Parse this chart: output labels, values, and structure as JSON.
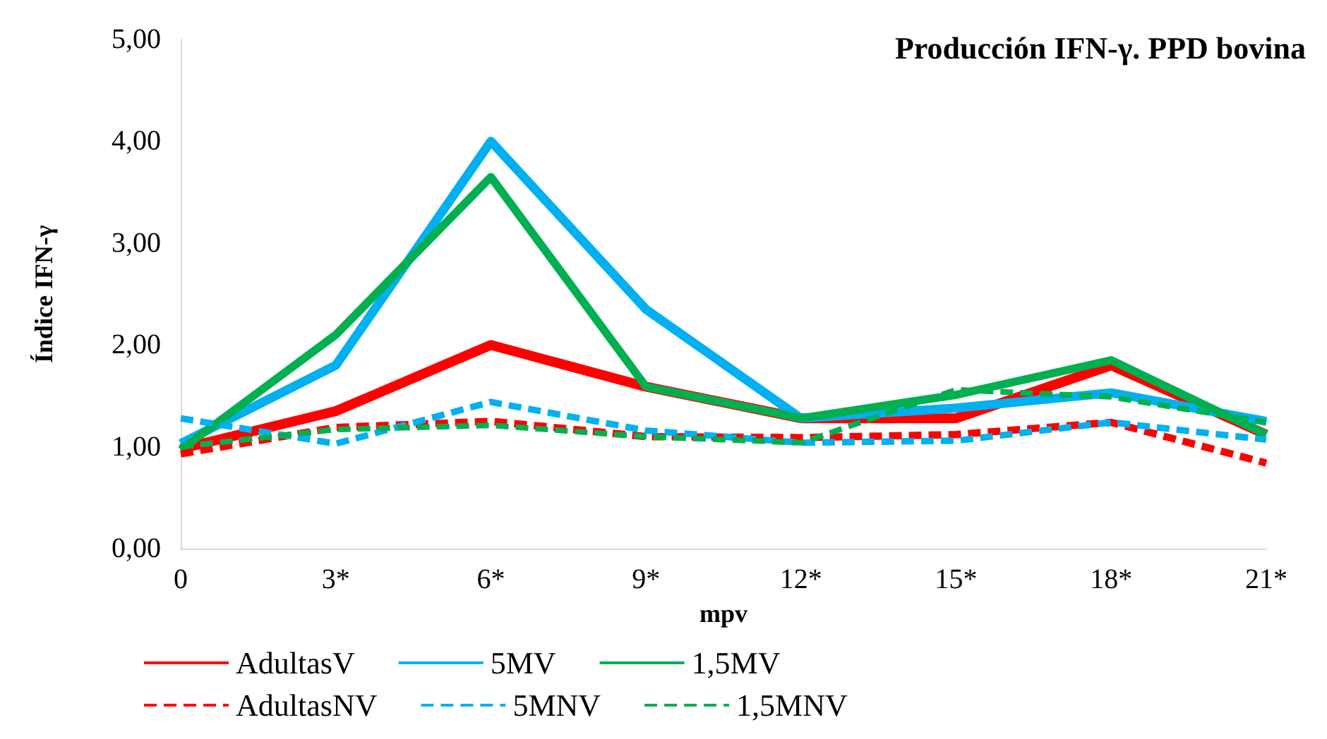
{
  "chart_data": {
    "type": "line",
    "title": "Producción IFN-γ. PPD bovina",
    "xlabel": "mpv",
    "ylabel": "Índice IFN-γ",
    "categories": [
      "0",
      "3*",
      "6*",
      "9*",
      "12*",
      "15*",
      "18*",
      "21*"
    ],
    "series": [
      {
        "name": "AdultasV",
        "color": "#ff0000",
        "line_style": "solid",
        "values": [
          0.98,
          1.35,
          2.0,
          1.59,
          1.28,
          1.28,
          1.8,
          1.12
        ]
      },
      {
        "name": "5MV",
        "color": "#00b0f0",
        "line_style": "solid",
        "values": [
          1.03,
          1.8,
          4.0,
          2.35,
          1.28,
          1.38,
          1.53,
          1.25
        ]
      },
      {
        "name": "1,5MV",
        "color": "#00b050",
        "line_style": "solid",
        "values": [
          0.97,
          2.1,
          3.65,
          1.59,
          1.28,
          1.51,
          1.85,
          1.12
        ]
      },
      {
        "name": "AdultasNV",
        "color": "#ff0000",
        "line_style": "dashed",
        "values": [
          0.93,
          1.19,
          1.25,
          1.1,
          1.09,
          1.12,
          1.24,
          0.84
        ]
      },
      {
        "name": "5MNV",
        "color": "#00b0f0",
        "line_style": "dashed",
        "values": [
          1.28,
          1.03,
          1.44,
          1.16,
          1.04,
          1.06,
          1.24,
          1.07
        ]
      },
      {
        "name": "1,5MNV",
        "color": "#00b050",
        "line_style": "dashed",
        "values": [
          1.0,
          1.17,
          1.21,
          1.1,
          1.04,
          1.56,
          1.49,
          1.24
        ]
      }
    ],
    "ylim": [
      0,
      5
    ],
    "yticks": [
      {
        "value": 0,
        "label": "0,00"
      },
      {
        "value": 1,
        "label": "1,00"
      },
      {
        "value": 2,
        "label": "2,00"
      },
      {
        "value": 3,
        "label": "3,00"
      },
      {
        "value": 4,
        "label": "4,00"
      },
      {
        "value": 5,
        "label": "5,00"
      }
    ],
    "grid": false,
    "legend": "bottom",
    "marker": "none"
  }
}
